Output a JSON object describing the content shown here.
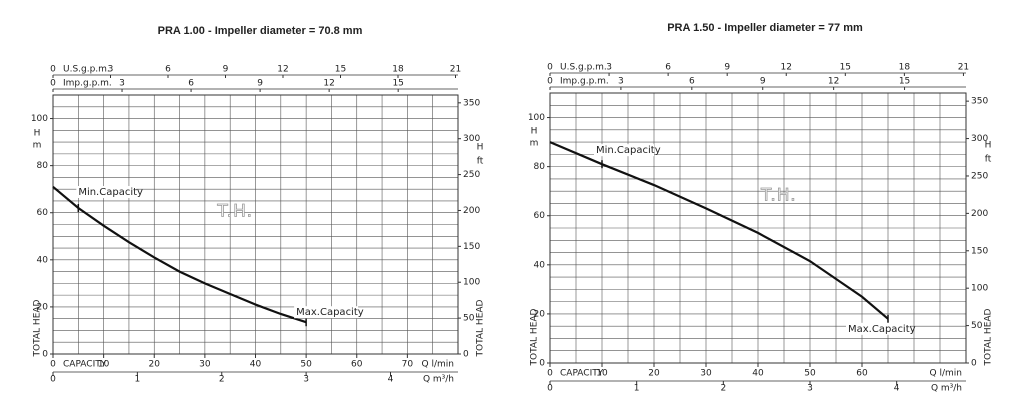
{
  "chart_data": [
    {
      "type": "line",
      "title": "PRA 1.00 - Impeller diameter = 70.8 mm",
      "x": [
        0,
        5,
        10,
        15,
        20,
        25,
        30,
        35,
        40,
        45,
        50
      ],
      "x_label": "Q l/min",
      "x_caption": "CAPACITY",
      "xlim": [
        0,
        80
      ],
      "xticks": [
        0,
        10,
        20,
        30,
        40,
        50,
        60,
        70
      ],
      "series": [
        {
          "name": "T.H.",
          "color": "#111111",
          "values": [
            71,
            62,
            54.5,
            47.5,
            41,
            35,
            30,
            25.5,
            21,
            17,
            13.5
          ]
        }
      ],
      "annotations": [
        "Min.Capacity",
        "Max.Capacity"
      ],
      "ylim": [
        0,
        110
      ],
      "yticks": [
        0,
        20,
        40,
        60,
        80,
        100
      ],
      "y_label": "H",
      "y_unit": "m",
      "y_title": "TOTAL HEAD",
      "y2lim": [
        0,
        360.9
      ],
      "y2ticks": [
        0,
        50,
        100,
        150,
        200,
        250,
        300,
        350
      ],
      "y2_label": "H",
      "y2_unit": "ft",
      "y2_title": "TOTAL HEAD",
      "x2_axes": [
        {
          "label": "Q m³/h",
          "lim": [
            0,
            4.8
          ],
          "ticks": [
            0,
            1,
            2,
            3,
            4
          ],
          "position": "bottom"
        },
        {
          "label": "U.S.g.p.m.",
          "lim": [
            0,
            21.13
          ],
          "ticks": [
            0,
            3,
            6,
            9,
            12,
            15,
            18,
            21
          ],
          "position": "top"
        },
        {
          "label": "Imp.g.p.m.",
          "lim": [
            0,
            17.6
          ],
          "ticks": [
            0,
            3,
            6,
            9,
            12,
            15
          ],
          "position": "top"
        }
      ],
      "grid": true
    },
    {
      "type": "line",
      "title": "PRA 1.50 - Impeller diameter = 77 mm",
      "x": [
        0,
        10,
        20,
        30,
        40,
        50,
        60,
        65
      ],
      "x_label": "Q l/min",
      "x_caption": "CAPACITY",
      "xlim": [
        0,
        80
      ],
      "xticks": [
        0,
        10,
        20,
        30,
        40,
        50,
        60
      ],
      "series": [
        {
          "name": "T.H.",
          "color": "#111111",
          "values": [
            90,
            81,
            72.5,
            63,
            53,
            41.5,
            27,
            18
          ]
        }
      ],
      "annotations": [
        "Min.Capacity",
        "Max.Capacity"
      ],
      "ylim": [
        0,
        110
      ],
      "yticks": [
        0,
        20,
        40,
        60,
        80,
        100
      ],
      "y_label": "H",
      "y_unit": "m",
      "y_title": "TOTAL HEAD",
      "y2lim": [
        0,
        360.9
      ],
      "y2ticks": [
        0,
        50,
        100,
        150,
        200,
        250,
        300,
        350
      ],
      "y2_label": "H",
      "y2_unit": "ft",
      "y2_title": "TOTAL HEAD",
      "x2_axes": [
        {
          "label": "Q m³/h",
          "lim": [
            0,
            4.8
          ],
          "ticks": [
            0,
            1,
            2,
            3,
            4
          ],
          "position": "bottom"
        },
        {
          "label": "U.S.g.p.m.",
          "lim": [
            0,
            21.13
          ],
          "ticks": [
            0,
            3,
            6,
            9,
            12,
            15,
            18,
            21
          ],
          "position": "top"
        },
        {
          "label": "Imp.g.p.m.",
          "lim": [
            0,
            17.6
          ],
          "ticks": [
            0,
            3,
            6,
            9,
            12,
            15
          ],
          "position": "top"
        }
      ],
      "grid": true
    }
  ]
}
